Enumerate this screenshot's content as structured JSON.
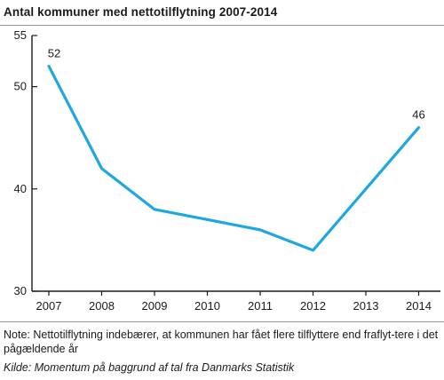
{
  "title": "Antal kommuner med nettotilflytning 2007-2014",
  "note": "Note: Nettotilflytning indebærer, at kommunen har fået flere tilflyttere end fraflyt-tere i det pågældende år",
  "source": "Kilde: Momentum på baggrund af tal fra Danmarks Statistik",
  "colors": {
    "line": "#1ea8df",
    "axis": "#1a1a1a"
  },
  "chart_data": {
    "type": "line",
    "title": "Antal kommuner med nettotilflytning 2007-2014",
    "categories": [
      "2007",
      "2008",
      "2009",
      "2010",
      "2011",
      "2012",
      "2013",
      "2014"
    ],
    "series": [
      {
        "values": [
          52,
          42,
          38,
          37,
          36,
          34,
          40,
          46
        ]
      }
    ],
    "data_labels": [
      {
        "index": 0,
        "text": "52"
      },
      {
        "index": 7,
        "text": "46"
      }
    ],
    "yticks": [
      30,
      40,
      50,
      55
    ],
    "ylim": [
      30,
      55
    ],
    "grid": false,
    "legend": "none"
  }
}
